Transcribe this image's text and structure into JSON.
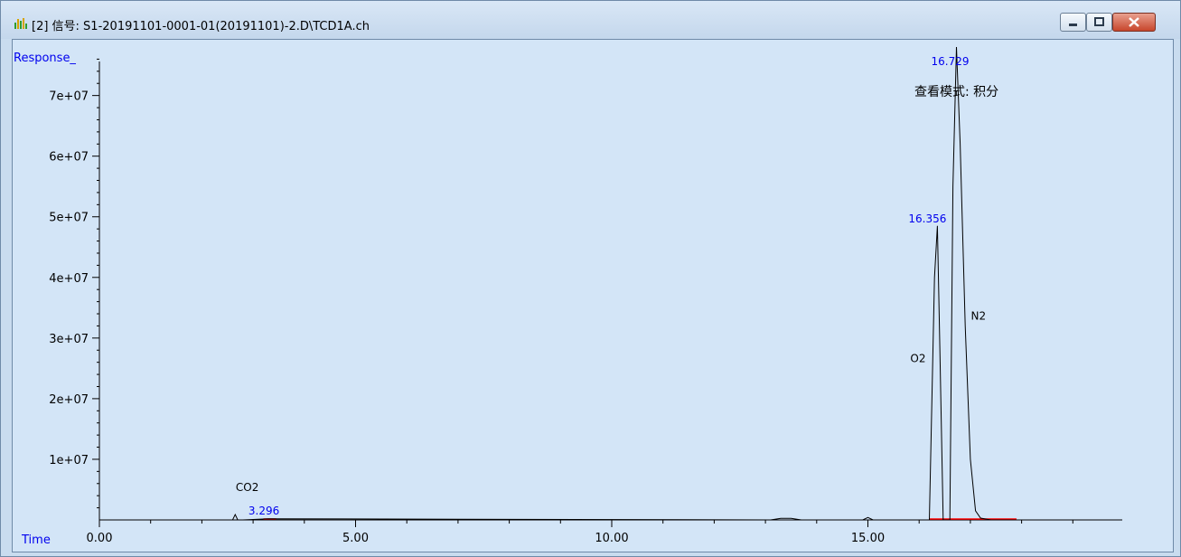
{
  "window": {
    "title": "[2] 信号: S1-20191101-0001-01(20191101)-2.D\\TCD1A.ch",
    "app_icon": "chromatogram-icon",
    "controls": [
      "minimize-icon",
      "maximize-icon",
      "close-icon"
    ]
  },
  "view_mode": "查看模式: 积分",
  "chart_data": {
    "type": "line",
    "xlabel": "Time",
    "ylabel": "Response_",
    "xlim": [
      0,
      20
    ],
    "ylim": [
      0,
      78000000
    ],
    "x_ticks": [
      0,
      5,
      10,
      15
    ],
    "x_tick_labels": [
      "0.00",
      "5.00",
      "10.00",
      "15.00"
    ],
    "y_ticks": [
      10000000,
      20000000,
      30000000,
      40000000,
      50000000,
      60000000,
      70000000
    ],
    "y_tick_labels": [
      "1e+07",
      "2e+07",
      "3e+07",
      "4e+07",
      "5e+07",
      "6e+07",
      "7e+07"
    ],
    "grid": false,
    "series": [
      {
        "x": [
          0.0,
          2.6,
          2.65,
          2.7,
          2.8,
          3.296,
          13.1,
          13.3,
          13.5,
          13.7,
          14.9,
          15.0,
          15.1,
          16.2,
          16.3,
          16.356,
          16.4,
          16.47,
          16.5,
          16.6,
          16.66,
          16.729,
          16.8,
          16.9,
          17.0,
          17.1,
          17.2,
          17.4,
          19.0
        ],
        "y": [
          0,
          0,
          900000,
          0,
          0,
          200000,
          0,
          250000,
          250000,
          0,
          0,
          400000,
          0,
          0,
          40000000,
          48500000,
          30000000,
          0,
          0,
          0,
          55000000,
          78000000,
          62000000,
          32000000,
          10000000,
          1500000,
          300000,
          0,
          0
        ]
      }
    ],
    "peaks": [
      {
        "rt": 3.296,
        "label": "3.296",
        "name": "CO2"
      },
      {
        "rt": 16.356,
        "label": "16.356",
        "name": "O2"
      },
      {
        "rt": 16.729,
        "label": "16.729",
        "name": "N2"
      }
    ],
    "baselines": [
      {
        "x_start": 3.2,
        "x_end": 3.45
      },
      {
        "x_start": 16.2,
        "x_end": 17.9
      }
    ]
  }
}
